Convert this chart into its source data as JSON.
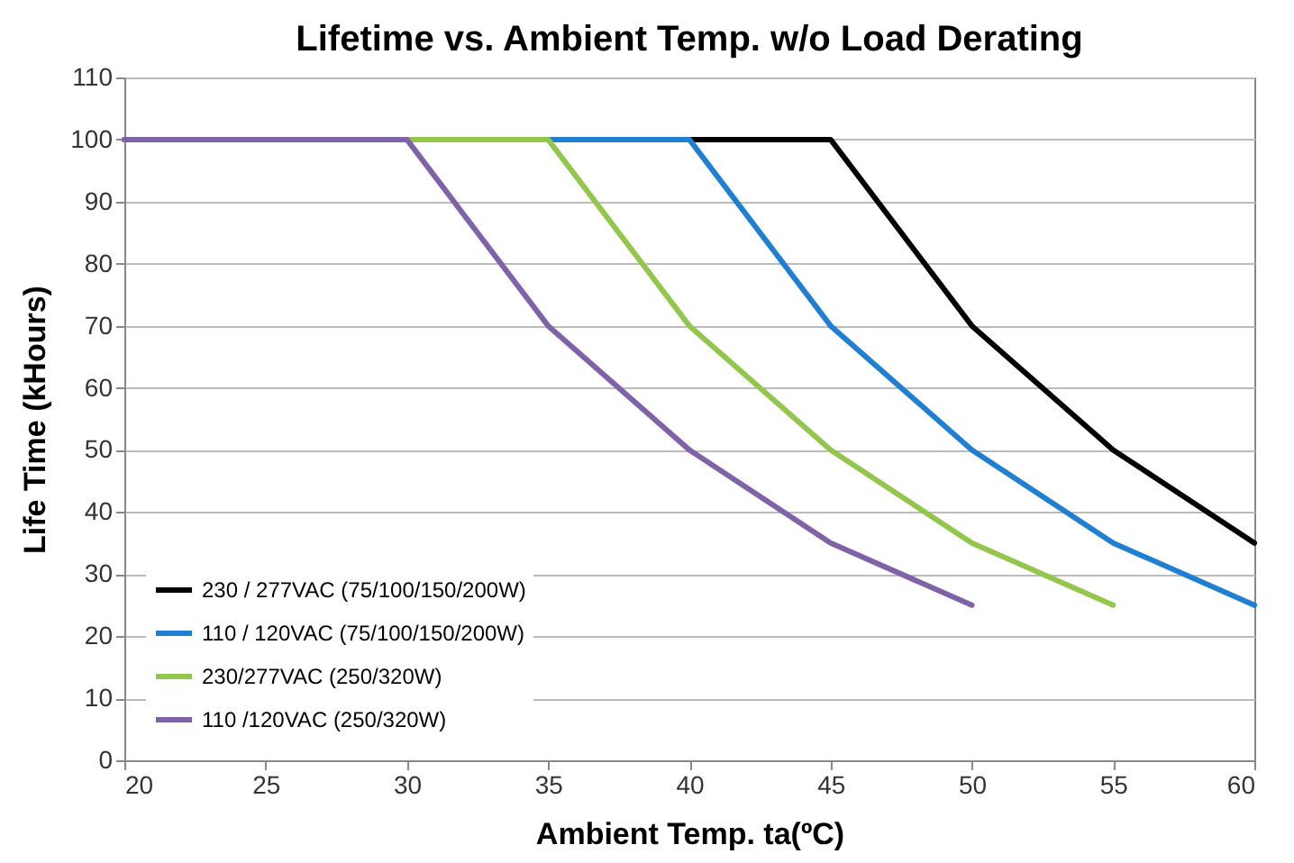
{
  "chart_data": {
    "type": "line",
    "title": "Lifetime vs. Ambient Temp. w/o Load Derating",
    "xlabel": "Ambient Temp. ta(ºC)",
    "ylabel": "Life Time (kHours)",
    "series": [
      {
        "name": "230 / 277VAC (75/100/150/200W)",
        "color": "#000000",
        "x": [
          20,
          45,
          50,
          55,
          60
        ],
        "values": [
          100,
          100,
          70,
          50,
          35
        ]
      },
      {
        "name": "110 / 120VAC (75/100/150/200W)",
        "color": "#1f7fd2",
        "x": [
          20,
          40,
          45,
          50,
          55,
          60
        ],
        "values": [
          100,
          100,
          70,
          50,
          35,
          25
        ]
      },
      {
        "name": "230/277VAC (250/320W)",
        "color": "#93c64c",
        "x": [
          20,
          35,
          40,
          45,
          50,
          55
        ],
        "values": [
          100,
          100,
          70,
          50,
          35,
          25
        ]
      },
      {
        "name": "110 /120VAC (250/320W)",
        "color": "#8062a8",
        "x": [
          20,
          30,
          35,
          40,
          45,
          50
        ],
        "values": [
          100,
          100,
          70,
          50,
          35,
          25
        ]
      }
    ],
    "xlim": [
      20,
      60
    ],
    "xticks": [
      20,
      25,
      30,
      35,
      40,
      45,
      50,
      55,
      60
    ],
    "ylim": [
      0,
      110
    ],
    "yticks": [
      0,
      10,
      20,
      30,
      40,
      50,
      60,
      70,
      80,
      90,
      100,
      110
    ],
    "grid": "y",
    "legend": "bottom left",
    "marker": "none",
    "line_style": "solid"
  }
}
